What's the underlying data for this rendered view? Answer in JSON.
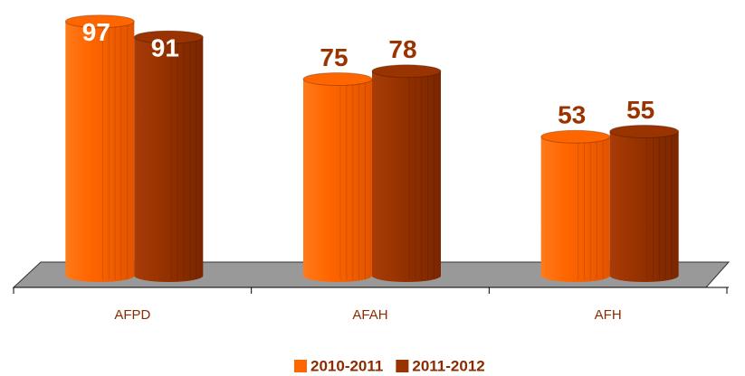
{
  "chart_data": {
    "type": "bar",
    "categories": [
      "AFPD",
      "AFAH",
      "AFH"
    ],
    "series": [
      {
        "name": "2010-2011",
        "color": "#ff6600",
        "values": [
          97,
          75,
          53
        ]
      },
      {
        "name": "2011-2012",
        "color": "#993300",
        "values": [
          91,
          78,
          55
        ]
      }
    ]
  }
}
